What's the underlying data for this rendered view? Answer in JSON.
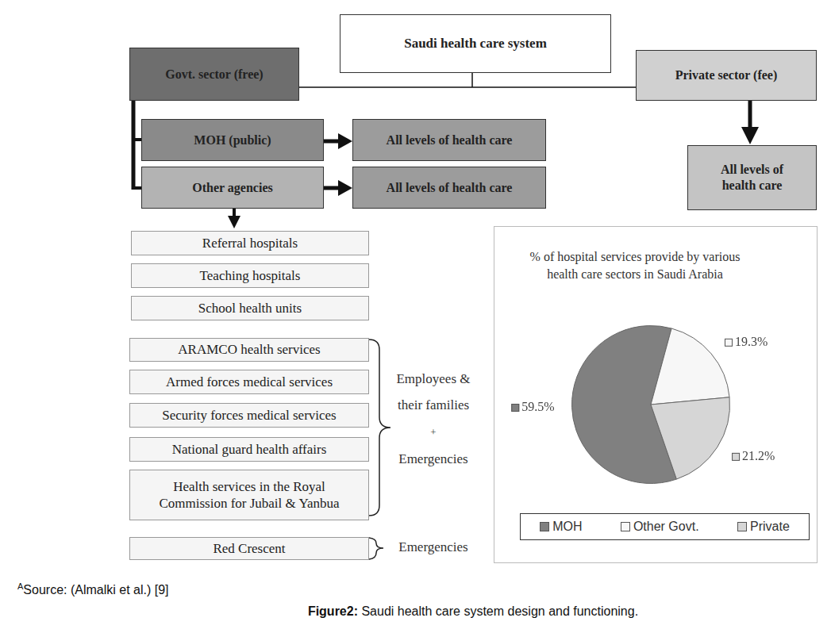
{
  "diagram": {
    "title": "Saudi health care system",
    "government": {
      "label": "Govt. sector (free)",
      "branches": [
        {
          "label": "MOH (public)",
          "provides": "All levels of health care"
        },
        {
          "label": "Other agencies",
          "provides": "All levels of health care"
        }
      ]
    },
    "private": {
      "label": "Private sector (fee)",
      "provides": "All levels of health care"
    },
    "other_agencies": [
      "Referral hospitals",
      "Teaching hospitals",
      "School health units"
    ],
    "served_groups": [
      {
        "members": [
          "ARAMCO health services",
          "Armed forces medical services",
          "Security forces medical services",
          "National guard health affairs",
          "Health services in the Royal Commission for Jubail & Yanbua"
        ],
        "serves": [
          "Employees &",
          "their families",
          "+",
          "Emergencies"
        ]
      },
      {
        "members": [
          "Red Crescent"
        ],
        "serves": [
          "Emergencies"
        ]
      }
    ]
  },
  "chart_data": {
    "type": "pie",
    "title": "% of hospital services provide by various health care sectors in Saudi Arabia",
    "categories": [
      "MOH",
      "Other Govt.",
      "Private"
    ],
    "values": [
      59.5,
      19.3,
      21.2
    ],
    "value_labels": [
      "59.5%",
      "19.3%",
      "21.2%"
    ],
    "colors": [
      "#808080",
      "#f7f7f7",
      "#d6d6d6"
    ],
    "legend": "bottom",
    "data_labels": true
  },
  "source": {
    "marker": "A",
    "text": "Source: (Almalki et al.) [9]"
  },
  "caption": {
    "label": "Figure2:",
    "text": "Saudi health care system design and functioning."
  }
}
